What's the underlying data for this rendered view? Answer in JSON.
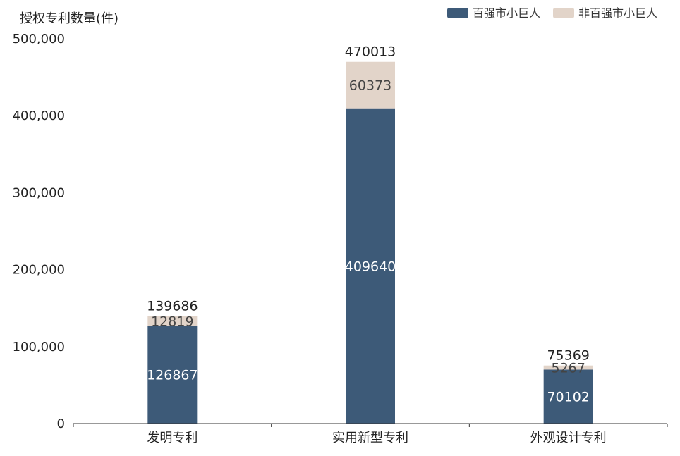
{
  "chart_data": {
    "type": "bar",
    "stacked": true,
    "ylabel": "授权专利数量(件)",
    "ylim": [
      0,
      500000
    ],
    "yticks": [
      "0",
      "100,000",
      "200,000",
      "300,000",
      "400,000",
      "500,000"
    ],
    "categories": [
      "发明专利",
      "实用新型专利",
      "外观设计专利"
    ],
    "series": [
      {
        "name": "百强市小巨人",
        "values": [
          126867,
          409640,
          70102
        ],
        "color": "#3d5a78"
      },
      {
        "name": "非百强市小巨人",
        "values": [
          12819,
          60373,
          5267
        ],
        "color": "#e2d4c9"
      }
    ],
    "totals": [
      139686,
      470013,
      75369
    ],
    "legend_position": "top-right",
    "grid": false
  }
}
